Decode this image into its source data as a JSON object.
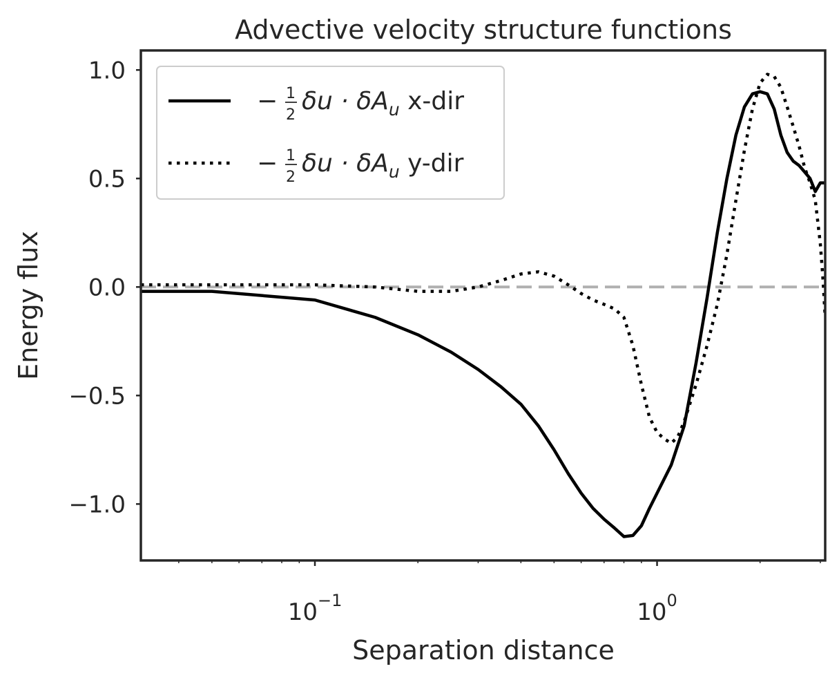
{
  "chart_data": {
    "type": "line",
    "title": "Advective velocity structure functions",
    "xlabel": "Separation distance",
    "ylabel": "Energy flux",
    "xscale": "log",
    "xlim": [
      0.031,
      3.1
    ],
    "ylim": [
      -1.26,
      1.09
    ],
    "xticks": [
      {
        "value": 0.1,
        "base": "10",
        "exp": "−1"
      },
      {
        "value": 1,
        "base": "10",
        "exp": "0"
      }
    ],
    "yticks": [
      {
        "value": 1.0,
        "label": "1.0"
      },
      {
        "value": 0.5,
        "label": "0.5"
      },
      {
        "value": 0.0,
        "label": "0.0"
      },
      {
        "value": -0.5,
        "label": "−0.5"
      },
      {
        "value": -1.0,
        "label": "−1.0"
      }
    ],
    "grid": false,
    "legend_position": "upper-left",
    "reference_line": {
      "y": 0.0,
      "style": "dashed",
      "color": "#b0b0b0"
    },
    "series": [
      {
        "name": "x-dir",
        "legend_prefix": "−",
        "legend_frac_num": "1",
        "legend_frac_den": "2",
        "legend_math": "δu · δA",
        "legend_sub": "u",
        "legend_suffix": " x-dir",
        "style": "solid",
        "color": "#000000",
        "x": [
          0.031,
          0.05,
          0.1,
          0.15,
          0.2,
          0.25,
          0.3,
          0.35,
          0.4,
          0.45,
          0.5,
          0.55,
          0.6,
          0.65,
          0.7,
          0.75,
          0.8,
          0.85,
          0.9,
          0.95,
          1.0,
          1.1,
          1.2,
          1.3,
          1.4,
          1.5,
          1.6,
          1.7,
          1.8,
          1.9,
          2.0,
          2.1,
          2.2,
          2.3,
          2.4,
          2.5,
          2.6,
          2.7,
          2.8,
          2.9,
          3.0,
          3.1
        ],
        "y": [
          -0.02,
          -0.02,
          -0.06,
          -0.14,
          -0.22,
          -0.3,
          -0.38,
          -0.46,
          -0.54,
          -0.64,
          -0.75,
          -0.86,
          -0.95,
          -1.02,
          -1.07,
          -1.11,
          -1.15,
          -1.145,
          -1.1,
          -1.02,
          -0.95,
          -0.82,
          -0.64,
          -0.35,
          -0.05,
          0.25,
          0.5,
          0.7,
          0.83,
          0.89,
          0.9,
          0.89,
          0.82,
          0.7,
          0.62,
          0.58,
          0.56,
          0.53,
          0.5,
          0.44,
          0.48,
          0.48
        ]
      },
      {
        "name": "y-dir",
        "legend_prefix": "−",
        "legend_frac_num": "1",
        "legend_frac_den": "2",
        "legend_math": "δu · δA",
        "legend_sub": "u",
        "legend_suffix": " y-dir",
        "style": "dotted",
        "color": "#000000",
        "x": [
          0.031,
          0.05,
          0.1,
          0.15,
          0.2,
          0.25,
          0.3,
          0.35,
          0.4,
          0.45,
          0.5,
          0.55,
          0.6,
          0.65,
          0.7,
          0.75,
          0.8,
          0.85,
          0.9,
          0.95,
          1.0,
          1.05,
          1.1,
          1.15,
          1.2,
          1.3,
          1.4,
          1.5,
          1.6,
          1.7,
          1.8,
          1.9,
          2.0,
          2.1,
          2.2,
          2.3,
          2.4,
          2.5,
          2.6,
          2.7,
          2.8,
          2.9,
          3.0,
          3.05,
          3.1
        ],
        "y": [
          0.01,
          0.01,
          0.01,
          0.0,
          -0.02,
          -0.02,
          0.0,
          0.03,
          0.06,
          0.07,
          0.05,
          0.01,
          -0.03,
          -0.06,
          -0.08,
          -0.1,
          -0.14,
          -0.27,
          -0.45,
          -0.6,
          -0.67,
          -0.7,
          -0.72,
          -0.69,
          -0.62,
          -0.45,
          -0.27,
          -0.08,
          0.15,
          0.4,
          0.63,
          0.82,
          0.94,
          0.98,
          0.97,
          0.92,
          0.83,
          0.74,
          0.65,
          0.55,
          0.48,
          0.4,
          0.2,
          0.05,
          -0.14
        ]
      }
    ]
  }
}
